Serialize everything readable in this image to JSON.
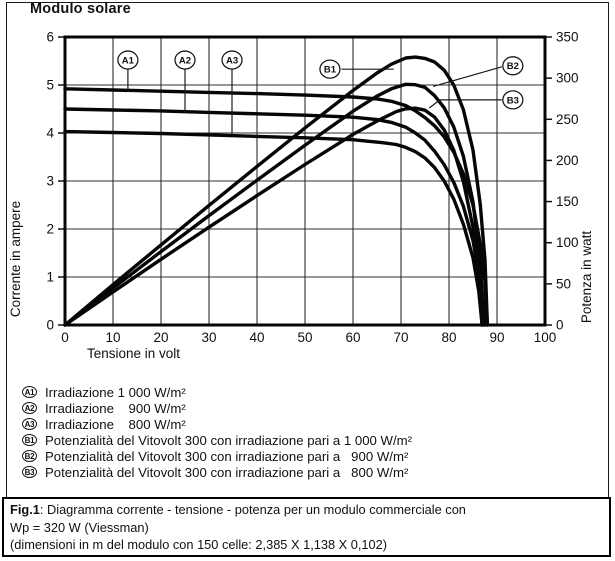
{
  "title": "Modulo solare",
  "chart_data": {
    "type": "line",
    "title": "Modulo solare",
    "xlabel": "Tensione in volt",
    "ylabel_left": "Corrente in ampere",
    "ylabel_right": "Potenza in watt",
    "xlim": [
      0,
      100
    ],
    "ylim_left": [
      0,
      6
    ],
    "ylim_right": [
      0,
      350
    ],
    "grid": true,
    "x_ticks": [
      0,
      10,
      20,
      30,
      40,
      50,
      60,
      70,
      80,
      90,
      100
    ],
    "y_ticks_left": [
      0,
      1,
      2,
      3,
      4,
      5,
      6
    ],
    "y_ticks_right": [
      0,
      50,
      100,
      150,
      200,
      250,
      300,
      350
    ],
    "series": [
      {
        "id": "A1",
        "axis": "left",
        "name": "Corrente, irradiazione 1 000 W/m²",
        "points": [
          [
            0,
            4.92
          ],
          [
            10,
            4.895
          ],
          [
            20,
            4.87
          ],
          [
            30,
            4.845
          ],
          [
            40,
            4.82
          ],
          [
            50,
            4.79
          ],
          [
            60,
            4.75
          ],
          [
            65,
            4.71
          ],
          [
            68,
            4.66
          ],
          [
            71,
            4.57
          ],
          [
            73,
            4.46
          ],
          [
            75,
            4.32
          ],
          [
            77,
            4.15
          ],
          [
            79,
            3.92
          ],
          [
            81,
            3.6
          ],
          [
            83,
            3.15
          ],
          [
            85,
            2.5
          ],
          [
            86.5,
            1.7
          ],
          [
            87.5,
            0.9
          ],
          [
            88,
            0
          ]
        ]
      },
      {
        "id": "A2",
        "axis": "left",
        "name": "Corrente, irradiazione 900 W/m²",
        "points": [
          [
            0,
            4.5
          ],
          [
            10,
            4.48
          ],
          [
            20,
            4.46
          ],
          [
            30,
            4.43
          ],
          [
            40,
            4.4
          ],
          [
            50,
            4.37
          ],
          [
            60,
            4.33
          ],
          [
            65,
            4.28
          ],
          [
            68,
            4.22
          ],
          [
            71,
            4.12
          ],
          [
            73,
            4.0
          ],
          [
            75,
            3.85
          ],
          [
            77,
            3.62
          ],
          [
            79,
            3.34
          ],
          [
            81,
            2.97
          ],
          [
            83,
            2.47
          ],
          [
            85,
            1.76
          ],
          [
            86.4,
            0.95
          ],
          [
            87.4,
            0
          ]
        ]
      },
      {
        "id": "A3",
        "axis": "left",
        "name": "Corrente, irradiazione 800 W/m²",
        "points": [
          [
            0,
            4.03
          ],
          [
            10,
            4.01
          ],
          [
            20,
            3.99
          ],
          [
            30,
            3.96
          ],
          [
            40,
            3.93
          ],
          [
            50,
            3.9
          ],
          [
            60,
            3.86
          ],
          [
            63,
            3.83
          ],
          [
            66,
            3.8
          ],
          [
            69,
            3.76
          ],
          [
            71,
            3.7
          ],
          [
            73,
            3.61
          ],
          [
            75,
            3.48
          ],
          [
            77,
            3.28
          ],
          [
            79,
            3.0
          ],
          [
            81,
            2.62
          ],
          [
            83,
            2.1
          ],
          [
            85,
            1.4
          ],
          [
            86.2,
            0.7
          ],
          [
            86.9,
            0
          ]
        ]
      },
      {
        "id": "B1",
        "axis": "right",
        "name": "Potenza, irradiazione 1 000 W/m²",
        "points": [
          [
            0,
            0
          ],
          [
            10,
            49
          ],
          [
            20,
            97.4
          ],
          [
            30,
            145.4
          ],
          [
            40,
            192.8
          ],
          [
            50,
            239.5
          ],
          [
            60,
            285
          ],
          [
            65,
            306.2
          ],
          [
            68,
            316.9
          ],
          [
            71,
            324.5
          ],
          [
            73,
            325.6
          ],
          [
            75,
            324
          ],
          [
            77,
            319.6
          ],
          [
            79,
            309.7
          ],
          [
            81,
            291.6
          ],
          [
            83,
            261.5
          ],
          [
            85,
            212.5
          ],
          [
            86.5,
            147
          ],
          [
            87.5,
            78.8
          ],
          [
            88,
            0
          ]
        ]
      },
      {
        "id": "B2",
        "axis": "right",
        "name": "Potenza, irradiazione 900 W/m²",
        "points": [
          [
            0,
            0
          ],
          [
            10,
            44.8
          ],
          [
            20,
            89.2
          ],
          [
            30,
            132.9
          ],
          [
            40,
            176
          ],
          [
            50,
            218.5
          ],
          [
            60,
            259.8
          ],
          [
            65,
            278.2
          ],
          [
            68,
            287
          ],
          [
            71,
            292.5
          ],
          [
            73,
            292
          ],
          [
            75,
            288.8
          ],
          [
            77,
            278.7
          ],
          [
            79,
            263.9
          ],
          [
            81,
            240.6
          ],
          [
            83,
            205
          ],
          [
            85,
            149.6
          ],
          [
            86.4,
            82.1
          ],
          [
            87.4,
            0
          ]
        ]
      },
      {
        "id": "B3",
        "axis": "right",
        "name": "Potenza, irradiazione 800 W/m²",
        "points": [
          [
            0,
            0
          ],
          [
            10,
            40.1
          ],
          [
            20,
            79.8
          ],
          [
            30,
            118.8
          ],
          [
            40,
            157.2
          ],
          [
            50,
            195
          ],
          [
            60,
            231.6
          ],
          [
            63,
            241.3
          ],
          [
            66,
            250.8
          ],
          [
            69,
            259.4
          ],
          [
            71,
            262.7
          ],
          [
            73,
            263.5
          ],
          [
            75,
            261
          ],
          [
            77,
            252.6
          ],
          [
            79,
            237
          ],
          [
            81,
            212.2
          ],
          [
            83,
            174.3
          ],
          [
            85,
            119
          ],
          [
            86.2,
            60.3
          ],
          [
            86.9,
            0
          ]
        ]
      }
    ],
    "annotations": [
      {
        "text": "A1",
        "circle_at": [
          13.1,
          5.52
        ],
        "leader": [
          [
            13.1,
            5.32
          ],
          [
            13.1,
            4.88
          ]
        ]
      },
      {
        "text": "A2",
        "circle_at": [
          25.0,
          5.52
        ],
        "leader": [
          [
            25.0,
            5.32
          ],
          [
            25.0,
            4.44
          ]
        ]
      },
      {
        "text": "A3",
        "circle_at": [
          34.8,
          5.52
        ],
        "leader": [
          [
            34.8,
            5.32
          ],
          [
            34.8,
            3.97
          ]
        ]
      },
      {
        "text": "B1",
        "circle_at": [
          55.2,
          5.33
        ],
        "leader": [
          [
            57.6,
            5.33
          ],
          [
            68.5,
            5.33
          ]
        ]
      },
      {
        "text": "B2",
        "circle_at": [
          93.3,
          5.4
        ],
        "leader": [
          [
            91.0,
            5.38
          ],
          [
            76.7,
            4.97
          ]
        ]
      },
      {
        "text": "B3",
        "circle_at": [
          93.3,
          4.69
        ],
        "leader": [
          [
            91.0,
            4.69
          ],
          [
            78.1,
            4.69
          ],
          [
            75.9,
            4.52
          ]
        ]
      }
    ]
  },
  "legend": {
    "items": [
      {
        "marker": "A1",
        "label": "Irradiazione 1 000 W/m²"
      },
      {
        "marker": "A2",
        "label": "Irradiazione    900 W/m²"
      },
      {
        "marker": "A3",
        "label": "Irradiazione    800 W/m²"
      },
      {
        "marker": "B1",
        "label": "Potenzialità del Vitovolt 300 con irradiazione pari a 1 000 W/m²"
      },
      {
        "marker": "B2",
        "label": "Potenzialità del Vitovolt 300 con irradiazione pari a   900 W/m²"
      },
      {
        "marker": "B3",
        "label": "Potenzialità del Vitovolt 300 con irradiazione pari a   800 W/m²"
      }
    ]
  },
  "caption": {
    "fig_label": "Fig.1",
    "line1": ": Diagramma corrente - tensione - potenza per un modulo commerciale con",
    "line2": "Wp = 320 W (Viessman)",
    "line3": "(dimensioni in m del modulo con 150 celle: 2,385 X 1,138 X 0,102)"
  }
}
